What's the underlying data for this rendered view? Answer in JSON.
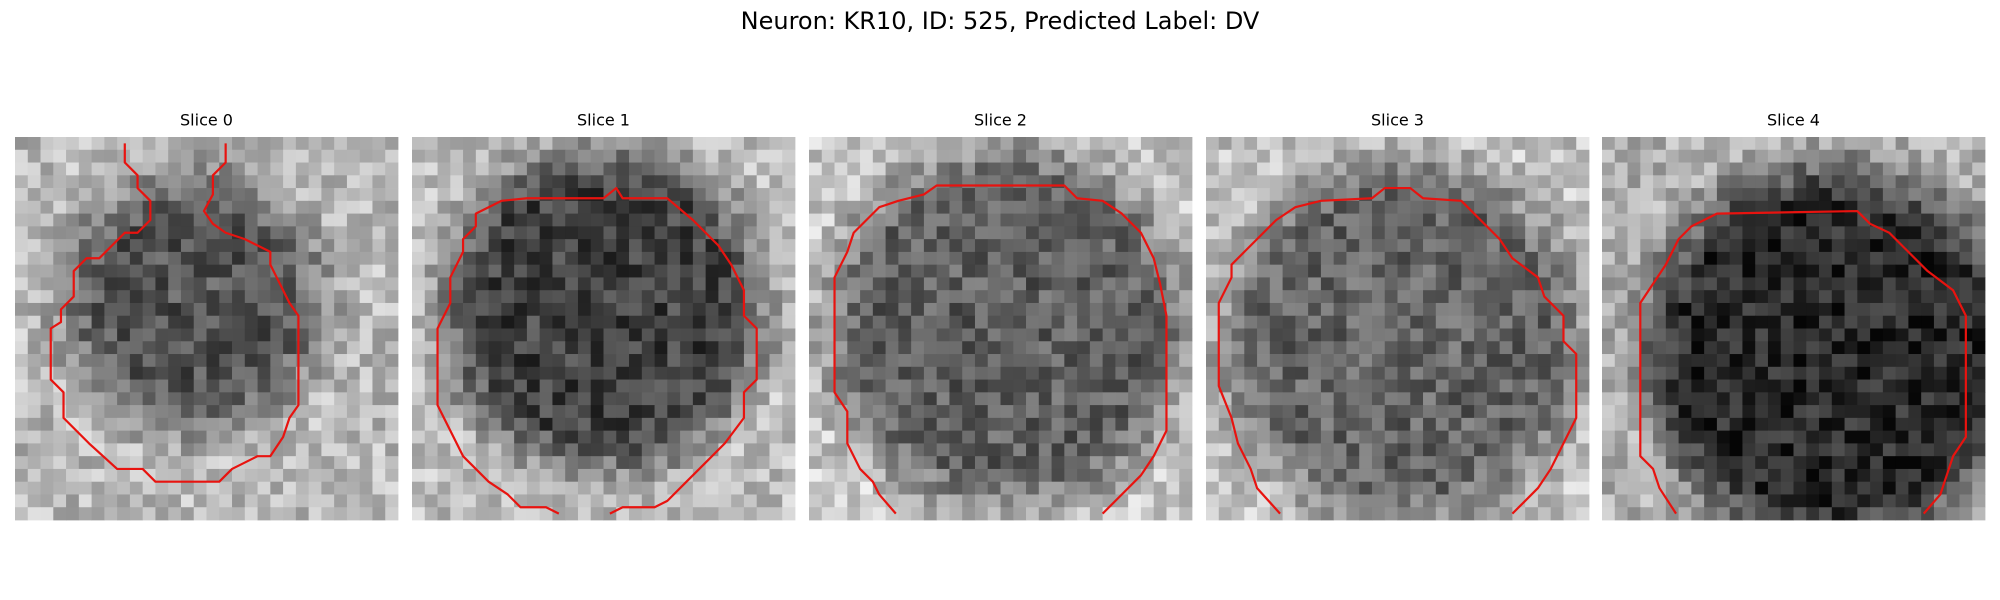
{
  "title": "Neuron: KR10, ID: 525, Predicted Label: DV",
  "panels": [
    {
      "title": "Slice 0"
    },
    {
      "title": "Slice 1"
    },
    {
      "title": "Slice 2"
    },
    {
      "title": "Slice 3"
    },
    {
      "title": "Slice 4"
    }
  ]
}
